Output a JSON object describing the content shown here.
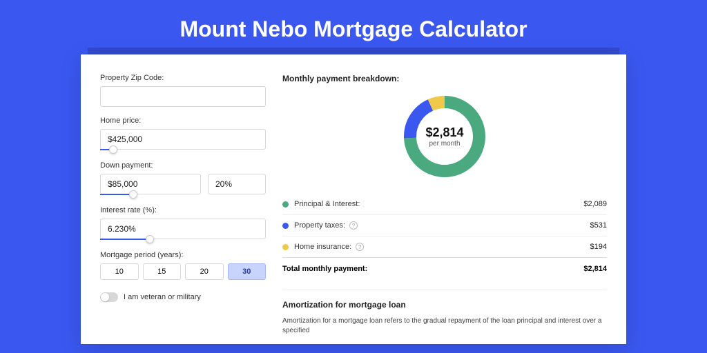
{
  "title": "Mount Nebo Mortgage Calculator",
  "colors": {
    "page_bg": "#3a58f0",
    "card_bg": "#ffffff",
    "accent": "#3a58f0"
  },
  "form": {
    "zip_label": "Property Zip Code:",
    "zip_value": "",
    "home_price_label": "Home price:",
    "home_price_value": "$425,000",
    "home_price_slider_pct": 8,
    "down_payment_label": "Down payment:",
    "down_payment_value": "$85,000",
    "down_payment_pct": "20%",
    "down_payment_slider_pct": 20,
    "interest_label": "Interest rate (%):",
    "interest_value": "6.230%",
    "interest_slider_pct": 30,
    "period_label": "Mortgage period (years):",
    "period_options": [
      "10",
      "15",
      "20",
      "30"
    ],
    "period_selected": "30",
    "veteran_label": "I am veteran or military"
  },
  "breakdown": {
    "heading": "Monthly payment breakdown:",
    "center_amount": "$2,814",
    "center_sub": "per month",
    "donut": {
      "size": 130,
      "radius": 50,
      "stroke_width": 18,
      "slices": [
        {
          "name": "principal_interest",
          "color": "#4aa97e",
          "pct": 74.2
        },
        {
          "name": "property_taxes",
          "color": "#3a58f0",
          "pct": 18.9
        },
        {
          "name": "home_insurance",
          "color": "#f0c94a",
          "pct": 6.9
        }
      ]
    },
    "items": [
      {
        "label": "Principal & Interest:",
        "value": "$2,089",
        "color": "#4aa97e",
        "info": false
      },
      {
        "label": "Property taxes:",
        "value": "$531",
        "color": "#3a58f0",
        "info": true
      },
      {
        "label": "Home insurance:",
        "value": "$194",
        "color": "#f0c94a",
        "info": true
      }
    ],
    "total_label": "Total monthly payment:",
    "total_value": "$2,814"
  },
  "amortization": {
    "title": "Amortization for mortgage loan",
    "text": "Amortization for a mortgage loan refers to the gradual repayment of the loan principal and interest over a specified"
  }
}
